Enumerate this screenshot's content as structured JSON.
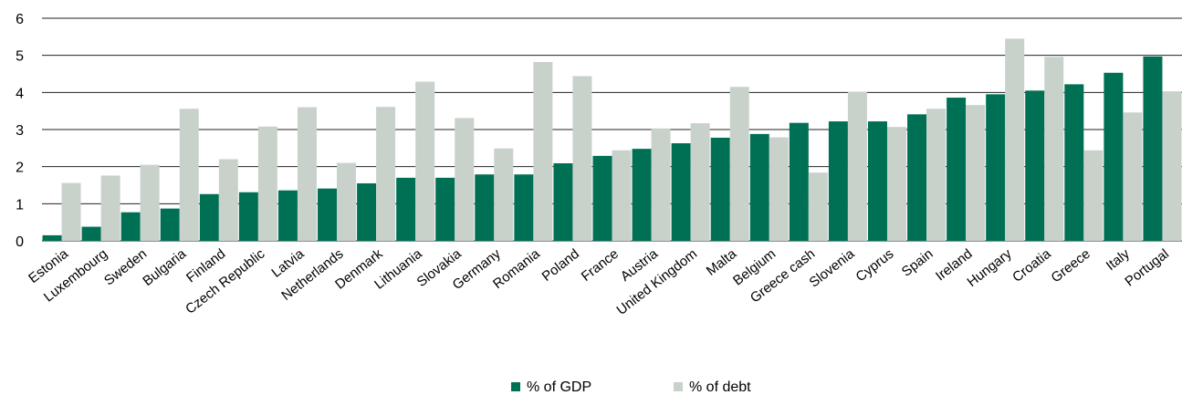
{
  "chart_data": {
    "type": "bar",
    "categories": [
      "Estonia",
      "Luxembourg",
      "Sweden",
      "Bulgaria",
      "Finland",
      "Czech Republic",
      "Latvia",
      "Netherlands",
      "Denmark",
      "Lithuania",
      "Slovakia",
      "Germany",
      "Romania",
      "Poland",
      "France",
      "Austria",
      "United Kingdom",
      "Malta",
      "Belgium",
      "Greece cash",
      "Slovenia",
      "Cyprus",
      "Spain",
      "Ireland",
      "Hungary",
      "Croatia",
      "Greece",
      "Italy",
      "Portugal"
    ],
    "series": [
      {
        "name": "% of GDP",
        "color": "#007055",
        "values": [
          0.15,
          0.38,
          0.77,
          0.87,
          1.26,
          1.31,
          1.36,
          1.41,
          1.55,
          1.7,
          1.7,
          1.79,
          1.79,
          2.09,
          2.29,
          2.48,
          2.63,
          2.78,
          2.88,
          3.18,
          3.22,
          3.22,
          3.41,
          3.86,
          3.95,
          4.05,
          4.22,
          4.53,
          4.97
        ]
      },
      {
        "name": "% of debt",
        "color": "#c8d2cb",
        "values": [
          1.56,
          1.76,
          2.05,
          3.56,
          2.2,
          3.08,
          3.6,
          2.1,
          3.61,
          4.29,
          3.31,
          2.49,
          4.82,
          4.44,
          2.44,
          3.03,
          3.17,
          4.15,
          2.79,
          1.84,
          4.02,
          3.07,
          3.56,
          3.66,
          5.45,
          4.96,
          2.44,
          3.46,
          4.03
        ]
      }
    ],
    "title": "",
    "xlabel": "",
    "ylabel": "",
    "ylim": [
      0,
      6
    ],
    "yticks": [
      0,
      1,
      2,
      3,
      4,
      5,
      6
    ],
    "grid": "horizontal",
    "legend": "bottom-center"
  }
}
